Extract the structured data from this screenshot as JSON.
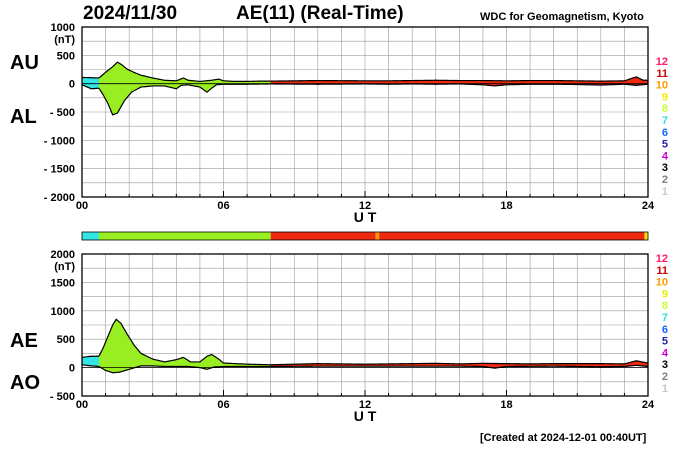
{
  "header": {
    "date": "2024/11/30",
    "title": "AE(11) (Real-Time)",
    "source": "WDC for Geomagnetism, Kyoto",
    "created": "[Created at 2024-12-01 00:40UT]"
  },
  "chart_data": [
    {
      "type": "area",
      "panel": "AU/AL",
      "ylabel": "(nT)",
      "series_labels": [
        "AU",
        "AL"
      ],
      "xlabel": "U T",
      "x_ticks": [
        "00",
        "06",
        "12",
        "18",
        "24"
      ],
      "xlim": [
        0,
        24
      ],
      "y_ticks": [
        "1000",
        "500",
        "0",
        "- 500",
        "- 1000",
        "- 1500",
        "- 2000"
      ],
      "y_tick_values": [
        1000,
        500,
        0,
        -500,
        -1000,
        -1500,
        -2000
      ],
      "ylim": [
        -2000,
        1000
      ],
      "grid": true,
      "legend_numbers": [
        "12",
        "11",
        "10",
        "9",
        "8",
        "7",
        "6",
        "5",
        "4",
        "3",
        "2",
        "1"
      ],
      "segments": [
        {
          "from": 0.0,
          "to": 0.72,
          "color": "#33e6e6"
        },
        {
          "from": 0.72,
          "to": 8.0,
          "color": "#99ee22"
        },
        {
          "from": 8.0,
          "to": 24.0,
          "color": "#ee2a0e"
        }
      ],
      "au": [
        [
          0,
          110
        ],
        [
          0.4,
          105
        ],
        [
          0.72,
          100
        ],
        [
          1.0,
          200
        ],
        [
          1.3,
          300
        ],
        [
          1.5,
          380
        ],
        [
          1.7,
          330
        ],
        [
          1.9,
          260
        ],
        [
          2.2,
          200
        ],
        [
          2.5,
          150
        ],
        [
          3.0,
          100
        ],
        [
          3.5,
          60
        ],
        [
          4.0,
          50
        ],
        [
          4.3,
          100
        ],
        [
          4.5,
          60
        ],
        [
          5.0,
          40
        ],
        [
          5.5,
          60
        ],
        [
          5.8,
          80
        ],
        [
          6.0,
          50
        ],
        [
          6.5,
          40
        ],
        [
          7.0,
          40
        ],
        [
          7.5,
          45
        ],
        [
          8.0,
          45
        ],
        [
          10,
          55
        ],
        [
          12,
          50
        ],
        [
          13,
          50
        ],
        [
          14,
          55
        ],
        [
          15,
          60
        ],
        [
          16,
          55
        ],
        [
          17,
          55
        ],
        [
          18,
          50
        ],
        [
          19,
          55
        ],
        [
          20,
          55
        ],
        [
          21,
          50
        ],
        [
          22,
          45
        ],
        [
          23,
          50
        ],
        [
          23.5,
          120
        ],
        [
          23.8,
          60
        ],
        [
          24,
          60
        ]
      ],
      "al": [
        [
          0,
          -20
        ],
        [
          0.4,
          -90
        ],
        [
          0.72,
          -80
        ],
        [
          0.9,
          -200
        ],
        [
          1.1,
          -350
        ],
        [
          1.3,
          -550
        ],
        [
          1.5,
          -520
        ],
        [
          1.8,
          -300
        ],
        [
          2.1,
          -150
        ],
        [
          2.5,
          -60
        ],
        [
          3.0,
          -40
        ],
        [
          3.5,
          -40
        ],
        [
          4.0,
          -90
        ],
        [
          4.2,
          -30
        ],
        [
          4.5,
          -20
        ],
        [
          5.0,
          -60
        ],
        [
          5.3,
          -150
        ],
        [
          5.5,
          -80
        ],
        [
          5.7,
          -20
        ],
        [
          6.0,
          -10
        ],
        [
          7.0,
          -10
        ],
        [
          8.0,
          -5
        ],
        [
          10,
          -10
        ],
        [
          12,
          -5
        ],
        [
          13,
          -10
        ],
        [
          14,
          -5
        ],
        [
          15,
          -10
        ],
        [
          16,
          -5
        ],
        [
          17,
          -20
        ],
        [
          17.5,
          -40
        ],
        [
          18,
          -20
        ],
        [
          19,
          -10
        ],
        [
          20,
          -10
        ],
        [
          21,
          -15
        ],
        [
          22,
          -25
        ],
        [
          23,
          -10
        ],
        [
          23.5,
          -30
        ],
        [
          24,
          -10
        ]
      ]
    },
    {
      "type": "area",
      "panel": "AE/AO",
      "ylabel": "(nT)",
      "series_labels": [
        "AE",
        "AO"
      ],
      "xlabel": "U T",
      "x_ticks": [
        "00",
        "06",
        "12",
        "18",
        "24"
      ],
      "xlim": [
        0,
        24
      ],
      "y_ticks": [
        "2000",
        "1500",
        "1000",
        "500",
        "0",
        "- 500"
      ],
      "y_tick_values": [
        2000,
        1500,
        1000,
        500,
        0,
        -500
      ],
      "ylim": [
        -500,
        2000
      ],
      "grid": true,
      "legend_numbers": [
        "12",
        "11",
        "10",
        "9",
        "8",
        "7",
        "6",
        "5",
        "4",
        "3",
        "2",
        "1"
      ],
      "segments": [
        {
          "from": 0.0,
          "to": 0.72,
          "color": "#33e6e6"
        },
        {
          "from": 0.72,
          "to": 8.0,
          "color": "#99ee22"
        },
        {
          "from": 8.0,
          "to": 24.0,
          "color": "#ee2a0e"
        }
      ],
      "ae": [
        [
          0,
          180
        ],
        [
          0.4,
          200
        ],
        [
          0.72,
          200
        ],
        [
          0.9,
          350
        ],
        [
          1.1,
          550
        ],
        [
          1.3,
          750
        ],
        [
          1.45,
          850
        ],
        [
          1.65,
          780
        ],
        [
          1.9,
          600
        ],
        [
          2.2,
          400
        ],
        [
          2.5,
          250
        ],
        [
          3.0,
          150
        ],
        [
          3.5,
          100
        ],
        [
          4.0,
          140
        ],
        [
          4.3,
          180
        ],
        [
          4.6,
          100
        ],
        [
          5.0,
          100
        ],
        [
          5.3,
          200
        ],
        [
          5.5,
          230
        ],
        [
          5.8,
          150
        ],
        [
          6.0,
          80
        ],
        [
          7.0,
          60
        ],
        [
          8.0,
          50
        ],
        [
          10,
          70
        ],
        [
          12,
          60
        ],
        [
          13,
          65
        ],
        [
          14,
          70
        ],
        [
          15,
          75
        ],
        [
          16,
          65
        ],
        [
          17,
          75
        ],
        [
          18,
          70
        ],
        [
          19,
          65
        ],
        [
          20,
          70
        ],
        [
          21,
          70
        ],
        [
          22,
          70
        ],
        [
          23,
          65
        ],
        [
          23.5,
          120
        ],
        [
          24,
          80
        ]
      ],
      "ao": [
        [
          0,
          50
        ],
        [
          0.4,
          30
        ],
        [
          0.72,
          20
        ],
        [
          1.0,
          -50
        ],
        [
          1.3,
          -90
        ],
        [
          1.6,
          -80
        ],
        [
          2.0,
          -30
        ],
        [
          2.5,
          30
        ],
        [
          3.0,
          30
        ],
        [
          3.5,
          20
        ],
        [
          4.0,
          20
        ],
        [
          4.5,
          20
        ],
        [
          5.0,
          0
        ],
        [
          5.3,
          -30
        ],
        [
          5.6,
          10
        ],
        [
          6.0,
          20
        ],
        [
          7.0,
          20
        ],
        [
          8.0,
          20
        ],
        [
          10,
          25
        ],
        [
          12,
          25
        ],
        [
          14,
          25
        ],
        [
          16,
          25
        ],
        [
          17,
          20
        ],
        [
          17.5,
          -10
        ],
        [
          18,
          20
        ],
        [
          20,
          25
        ],
        [
          22,
          15
        ],
        [
          23,
          20
        ],
        [
          23.5,
          40
        ],
        [
          24,
          20
        ]
      ]
    }
  ],
  "colors": {
    "cyan": "#33e6e6",
    "green": "#99ee22",
    "red": "#ee2a0e",
    "orange": "#ff9900",
    "yellow": "#f5e60a",
    "grid": "#9a9a9a",
    "legend": [
      "#ff1a66",
      "#cc0000",
      "#ff9900",
      "#eeee00",
      "#ccff33",
      "#33dddd",
      "#1a66ff",
      "#2222aa",
      "#cc00cc",
      "#000000",
      "#808080",
      "#c8c8c8"
    ]
  },
  "status_bar": {
    "segments": [
      {
        "from": 0.0,
        "to": 0.72,
        "color": "#33e6e6"
      },
      {
        "from": 0.72,
        "to": 8.0,
        "color": "#99ee22"
      },
      {
        "from": 8.0,
        "to": 12.45,
        "color": "#ee2a0e"
      },
      {
        "from": 12.45,
        "to": 12.6,
        "color": "#ff9900"
      },
      {
        "from": 12.6,
        "to": 23.85,
        "color": "#ee2a0e"
      },
      {
        "from": 23.85,
        "to": 24.0,
        "color": "#f5e60a"
      }
    ]
  }
}
